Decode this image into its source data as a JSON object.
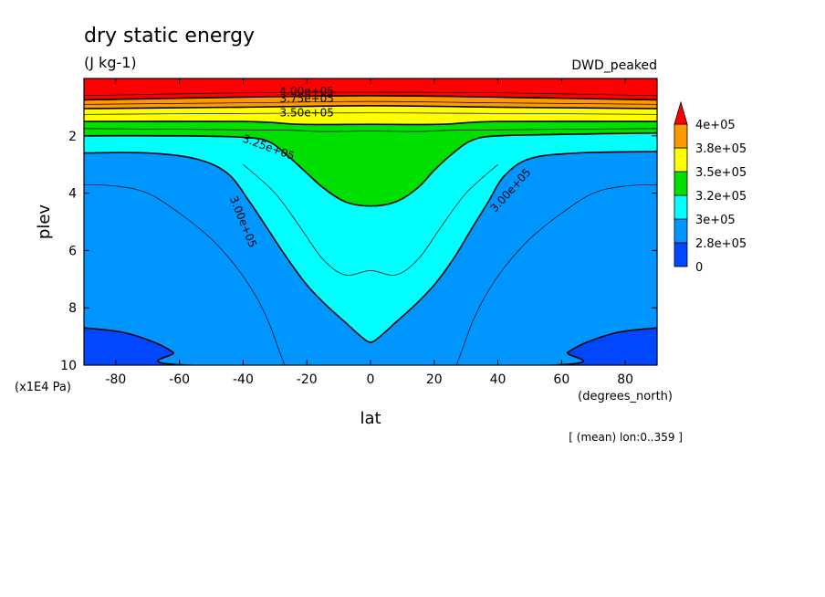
{
  "chart_data": {
    "type": "heatmap",
    "title": "dry static energy",
    "units": "(J kg-1)",
    "dataset": "DWD_peaked",
    "xlabel": "lat",
    "xunits": "(degrees_north)",
    "ylabel": "plev",
    "yunits": "(x1E4 Pa)",
    "footnote": "[ (mean) lon:0..359 ]",
    "xlim": [
      -90,
      90
    ],
    "ylim": [
      0,
      10
    ],
    "y_inverted": true,
    "xticks": [
      "-80",
      "-60",
      "-40",
      "-20",
      "0",
      "20",
      "40",
      "60",
      "80"
    ],
    "xtick_values": [
      -80,
      -60,
      -40,
      -20,
      0,
      20,
      40,
      60,
      80
    ],
    "yticks": [
      "2",
      "4",
      "6",
      "8",
      "10"
    ],
    "ytick_values": [
      2,
      4,
      6,
      8,
      10
    ],
    "colorbar": {
      "labels": [
        "0",
        "2.8e+05",
        "3e+05",
        "3.2e+05",
        "3.5e+05",
        "3.8e+05",
        "4e+05"
      ],
      "colors": [
        "#0047ff",
        "#0096ff",
        "#00ffff",
        "#00e000",
        "#ffff00",
        "#ff9900",
        "#ff0000"
      ]
    },
    "contour_labels": [
      {
        "text": "4.00e+05",
        "lat": -20,
        "plev": 0.45
      },
      {
        "text": "3.75e+05",
        "lat": -20,
        "plev": 0.7
      },
      {
        "text": "3.50e+05",
        "lat": -20,
        "plev": 1.2
      },
      {
        "text": "3.25e+05",
        "lat": -32,
        "plev": 2.4
      },
      {
        "text": "3.00e+05",
        "lat": -40,
        "plev": 5.0
      },
      {
        "text": "3.00e+05",
        "lat": 44,
        "plev": 3.9
      }
    ],
    "bands": [
      {
        "name": "3.8e+05-4e+05",
        "color": "#ff9900",
        "boundary": [
          [
            -90,
            0.75
          ],
          [
            -40,
            0.65
          ],
          [
            0,
            0.6
          ],
          [
            40,
            0.65
          ],
          [
            90,
            0.75
          ]
        ]
      },
      {
        "name": "3.5e+05-3.8e+05",
        "color": "#ffff00",
        "boundary": [
          [
            -90,
            1.05
          ],
          [
            -40,
            1.0
          ],
          [
            0,
            0.95
          ],
          [
            40,
            1.0
          ],
          [
            90,
            1.05
          ]
        ]
      },
      {
        "name": "3.2e+05-3.5e+05",
        "color": "#00e000",
        "boundary": [
          [
            -90,
            1.5
          ],
          [
            -40,
            1.5
          ],
          [
            -22,
            1.6
          ],
          [
            0,
            1.6
          ],
          [
            22,
            1.6
          ],
          [
            40,
            1.5
          ],
          [
            90,
            1.5
          ]
        ]
      },
      {
        "name": "3e+05-3.2e+05",
        "color": "#00ffff",
        "boundary": [
          [
            -90,
            2.0
          ],
          [
            -60,
            2.0
          ],
          [
            -40,
            2.05
          ],
          [
            -32,
            2.2
          ],
          [
            -26,
            2.7
          ],
          [
            -20,
            3.3
          ],
          [
            -15,
            3.8
          ],
          [
            -8,
            4.3
          ],
          [
            0,
            4.45
          ],
          [
            8,
            4.3
          ],
          [
            15,
            3.8
          ],
          [
            20,
            3.2
          ],
          [
            26,
            2.6
          ],
          [
            32,
            2.15
          ],
          [
            40,
            2.0
          ],
          [
            60,
            1.95
          ],
          [
            90,
            1.9
          ]
        ]
      },
      {
        "name": "2.8e+05-3e+05",
        "color": "#0096ff",
        "boundary": [
          [
            -90,
            2.6
          ],
          [
            -70,
            2.6
          ],
          [
            -55,
            2.8
          ],
          [
            -45,
            3.3
          ],
          [
            -38,
            4.3
          ],
          [
            -32,
            5.3
          ],
          [
            -26,
            6.3
          ],
          [
            -20,
            7.2
          ],
          [
            -14,
            7.9
          ],
          [
            -8,
            8.5
          ],
          [
            -3,
            9.0
          ],
          [
            0,
            9.2
          ],
          [
            3,
            9.0
          ],
          [
            8,
            8.5
          ],
          [
            14,
            7.9
          ],
          [
            20,
            7.2
          ],
          [
            26,
            6.3
          ],
          [
            32,
            5.2
          ],
          [
            37,
            4.3
          ],
          [
            42,
            3.4
          ],
          [
            50,
            2.8
          ],
          [
            65,
            2.6
          ],
          [
            90,
            2.55
          ]
        ]
      },
      {
        "name": "0-2.8e+05",
        "color": "#0047ff",
        "boundary": [
          [
            -90,
            8.7
          ],
          [
            -78,
            8.85
          ],
          [
            -68,
            9.2
          ],
          [
            -62,
            9.55
          ],
          [
            -57,
            10.0
          ],
          [
            57,
            10.0
          ],
          [
            62,
            9.55
          ],
          [
            68,
            9.2
          ],
          [
            78,
            8.85
          ],
          [
            90,
            8.7
          ]
        ]
      }
    ],
    "thin_contours": [
      [
        [
          -90,
          0.6
        ],
        [
          -40,
          0.5
        ],
        [
          0,
          0.48
        ],
        [
          40,
          0.5
        ],
        [
          90,
          0.6
        ]
      ],
      [
        [
          -90,
          0.9
        ],
        [
          -40,
          0.85
        ],
        [
          0,
          0.8
        ],
        [
          40,
          0.85
        ],
        [
          90,
          0.9
        ]
      ],
      [
        [
          -90,
          1.25
        ],
        [
          -40,
          1.22
        ],
        [
          0,
          1.2
        ],
        [
          40,
          1.22
        ],
        [
          90,
          1.25
        ]
      ],
      [
        [
          -90,
          1.75
        ],
        [
          -30,
          1.8
        ],
        [
          -15,
          1.85
        ],
        [
          0,
          1.83
        ],
        [
          15,
          1.85
        ],
        [
          30,
          1.8
        ],
        [
          90,
          1.75
        ]
      ],
      [
        [
          -90,
          3.7
        ],
        [
          -80,
          3.75
        ],
        [
          -70,
          4.0
        ],
        [
          -60,
          4.7
        ],
        [
          -50,
          5.6
        ],
        [
          -42,
          6.6
        ],
        [
          -36,
          7.6
        ],
        [
          -32,
          8.5
        ],
        [
          -29,
          9.4
        ],
        [
          -27,
          10.0
        ]
      ],
      [
        [
          27,
          10.0
        ],
        [
          29,
          9.4
        ],
        [
          32,
          8.5
        ],
        [
          36,
          7.6
        ],
        [
          42,
          6.6
        ],
        [
          50,
          5.6
        ],
        [
          60,
          4.7
        ],
        [
          70,
          4.0
        ],
        [
          80,
          3.75
        ],
        [
          90,
          3.7
        ]
      ],
      [
        [
          -40,
          3.0
        ],
        [
          -30,
          4.0
        ],
        [
          -22,
          5.2
        ],
        [
          -15,
          6.3
        ],
        [
          -8,
          6.85
        ],
        [
          0,
          6.7
        ],
        [
          8,
          6.85
        ],
        [
          15,
          6.3
        ],
        [
          22,
          5.2
        ],
        [
          30,
          4.0
        ],
        [
          40,
          3.0
        ]
      ]
    ]
  }
}
